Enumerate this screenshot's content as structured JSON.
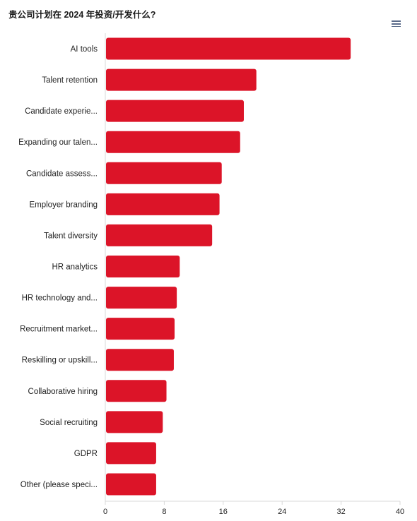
{
  "title": "贵公司计划在 2024 年投资/开发什么?",
  "menu_icon": "hamburger-menu-icon",
  "chart_data": {
    "type": "bar",
    "orientation": "horizontal",
    "categories": [
      "AI tools",
      "Talent retention",
      "Candidate experie...",
      "Expanding our talen...",
      "Candidate assess...",
      "Employer branding",
      "Talent diversity",
      "HR analytics",
      "HR technology and...",
      "Recruitment market...",
      "Reskilling or upskill...",
      "Collaborative hiring",
      "Social recruiting",
      "GDPR",
      "Other (please speci..."
    ],
    "values": [
      33.3,
      20.5,
      18.8,
      18.3,
      15.8,
      15.5,
      14.5,
      10.1,
      9.7,
      9.4,
      9.3,
      8.3,
      7.8,
      6.9,
      6.9
    ],
    "xlim": [
      0,
      40
    ],
    "xticks": [
      "0",
      "8",
      "16",
      "24",
      "32",
      "40"
    ],
    "bar_color": "#dc1428",
    "grid": false
  }
}
